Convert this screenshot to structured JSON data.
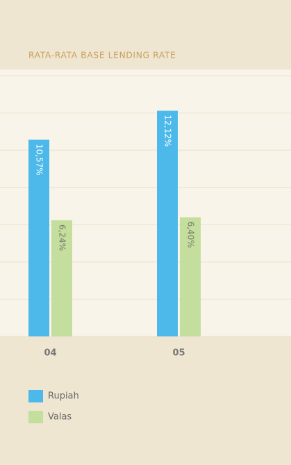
{
  "chart_data": {
    "type": "bar",
    "title": "RATA-RATA BASE LENDING RATE",
    "categories": [
      "04",
      "05"
    ],
    "series": [
      {
        "name": "Rupiah",
        "color": "#4db8ea",
        "values": [
          10.57,
          12.12
        ],
        "value_labels": [
          "10,57%",
          "12,12%"
        ]
      },
      {
        "name": "Valas",
        "color": "#c4de9d",
        "values": [
          6.24,
          6.4
        ],
        "value_labels": [
          "6,24%",
          "6,40%"
        ]
      }
    ],
    "ylim": [
      0,
      14
    ],
    "yticks": [
      0,
      2,
      4,
      6,
      8,
      10,
      12,
      14
    ],
    "grid": true
  }
}
